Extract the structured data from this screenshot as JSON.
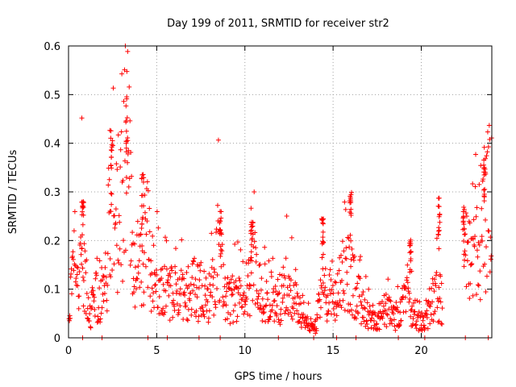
{
  "chart_data": {
    "type": "scatter",
    "title": "Day 199 of 2011, SRMTID for receiver str2",
    "xlabel": "GPS time / hours",
    "ylabel": "SRMTID / TECUs",
    "xlim": [
      0,
      24
    ],
    "ylim": [
      0,
      0.6
    ],
    "xticks": [
      0,
      5,
      10,
      15,
      20
    ],
    "xtick_labels": [
      "0",
      "5",
      "10",
      "15",
      "20"
    ],
    "yticks": [
      0,
      0.1,
      0.2,
      0.3,
      0.4,
      0.5,
      0.6
    ],
    "ytick_labels": [
      "0",
      "0.1",
      "0.2",
      "0.3",
      "0.4",
      "0.5",
      "0.6"
    ],
    "grid": true,
    "series": [
      {
        "name": "SRMTID",
        "color": "#ff0000",
        "marker": "plus",
        "anchors": [
          [
            0.0,
            0.05
          ],
          [
            0.3,
            0.12
          ],
          [
            0.6,
            0.09
          ],
          [
            0.8,
            0.22
          ],
          [
            1.0,
            0.07
          ],
          [
            1.2,
            0.05
          ],
          [
            1.5,
            0.08
          ],
          [
            1.8,
            0.09
          ],
          [
            2.1,
            0.1
          ],
          [
            2.4,
            0.3
          ],
          [
            2.7,
            0.25
          ],
          [
            3.0,
            0.28
          ],
          [
            3.3,
            0.4
          ],
          [
            3.5,
            0.3
          ],
          [
            3.8,
            0.15
          ],
          [
            4.1,
            0.13
          ],
          [
            4.4,
            0.22
          ],
          [
            4.8,
            0.12
          ],
          [
            5.2,
            0.1
          ],
          [
            5.6,
            0.09
          ],
          [
            6.0,
            0.09
          ],
          [
            6.5,
            0.1
          ],
          [
            7.0,
            0.1
          ],
          [
            7.5,
            0.09
          ],
          [
            8.0,
            0.08
          ],
          [
            8.5,
            0.18
          ],
          [
            8.8,
            0.09
          ],
          [
            9.2,
            0.08
          ],
          [
            9.6,
            0.09
          ],
          [
            10.0,
            0.07
          ],
          [
            10.4,
            0.15
          ],
          [
            10.8,
            0.1
          ],
          [
            11.2,
            0.09
          ],
          [
            11.6,
            0.08
          ],
          [
            12.0,
            0.07
          ],
          [
            12.4,
            0.12
          ],
          [
            12.8,
            0.07
          ],
          [
            13.2,
            0.06
          ],
          [
            13.6,
            0.03
          ],
          [
            14.0,
            0.02
          ],
          [
            14.4,
            0.1
          ],
          [
            14.8,
            0.06
          ],
          [
            15.2,
            0.08
          ],
          [
            15.6,
            0.13
          ],
          [
            16.0,
            0.14
          ],
          [
            16.4,
            0.08
          ],
          [
            16.8,
            0.06
          ],
          [
            17.2,
            0.04
          ],
          [
            17.6,
            0.04
          ],
          [
            18.0,
            0.06
          ],
          [
            18.4,
            0.04
          ],
          [
            18.8,
            0.05
          ],
          [
            19.2,
            0.08
          ],
          [
            19.6,
            0.04
          ],
          [
            20.0,
            0.03
          ],
          [
            20.4,
            0.05
          ],
          [
            20.8,
            0.1
          ],
          [
            21.2,
            0.06
          ],
          [
            21.6,
            null
          ],
          [
            22.0,
            null
          ],
          [
            22.4,
            0.17
          ],
          [
            22.8,
            0.14
          ],
          [
            23.2,
            0.2
          ],
          [
            23.6,
            0.25
          ],
          [
            24.0,
            0.28
          ]
        ],
        "peaks": [
          [
            0.8,
            0.28
          ],
          [
            2.4,
            0.43
          ],
          [
            3.3,
            0.51
          ],
          [
            4.2,
            0.34
          ],
          [
            8.6,
            0.26
          ],
          [
            10.4,
            0.24
          ],
          [
            14.4,
            0.25
          ],
          [
            16.0,
            0.3
          ],
          [
            19.4,
            0.21
          ],
          [
            21.0,
            0.29
          ],
          [
            22.4,
            0.27
          ],
          [
            23.6,
            0.4
          ]
        ],
        "zero_points": [
          0.8,
          1.9,
          4.5,
          5.6,
          7.4,
          8.6,
          11.9,
          13.9,
          15.2,
          16.3,
          18.7,
          20.2,
          22.5,
          23.8
        ]
      }
    ]
  }
}
